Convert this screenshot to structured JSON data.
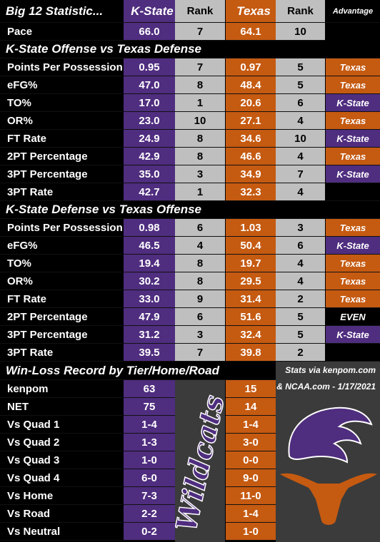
{
  "header": {
    "title": "Big 12 Statistic...",
    "team1": "K-State",
    "rank1": "Rank",
    "team2": "Texas",
    "rank2": "Rank",
    "advantage": "Advantage"
  },
  "pace": {
    "label": "Pace",
    "team1": "66.0",
    "rank1": "7",
    "team2": "64.1",
    "rank2": "10"
  },
  "sections": [
    {
      "title": "K-State Offense vs Texas Defense",
      "rows": [
        {
          "label": "Points Per Possession",
          "team1": "0.95",
          "rank1": "7",
          "team2": "0.97",
          "rank2": "5",
          "advantage": "Texas"
        },
        {
          "label": "eFG%",
          "team1": "47.0",
          "rank1": "8",
          "team2": "48.4",
          "rank2": "5",
          "advantage": "Texas"
        },
        {
          "label": "TO%",
          "team1": "17.0",
          "rank1": "1",
          "team2": "20.6",
          "rank2": "6",
          "advantage": "K-State"
        },
        {
          "label": "OR%",
          "team1": "23.0",
          "rank1": "10",
          "team2": "27.1",
          "rank2": "4",
          "advantage": "Texas"
        },
        {
          "label": "FT Rate",
          "team1": "24.9",
          "rank1": "8",
          "team2": "34.6",
          "rank2": "10",
          "advantage": "K-State"
        },
        {
          "label": "2PT Percentage",
          "team1": "42.9",
          "rank1": "8",
          "team2": "46.6",
          "rank2": "4",
          "advantage": "Texas"
        },
        {
          "label": "3PT Percentage",
          "team1": "35.0",
          "rank1": "3",
          "team2": "34.9",
          "rank2": "7",
          "advantage": "K-State"
        },
        {
          "label": "3PT Rate",
          "team1": "42.7",
          "rank1": "1",
          "team2": "32.3",
          "rank2": "4"
        }
      ]
    },
    {
      "title": "K-State Defense vs Texas Offense",
      "rows": [
        {
          "label": "Points Per Possession",
          "team1": "0.98",
          "rank1": "6",
          "team2": "1.03",
          "rank2": "3",
          "advantage": "Texas"
        },
        {
          "label": "eFG%",
          "team1": "46.5",
          "rank1": "4",
          "team2": "50.4",
          "rank2": "6",
          "advantage": "K-State"
        },
        {
          "label": "TO%",
          "team1": "19.4",
          "rank1": "8",
          "team2": "19.7",
          "rank2": "4",
          "advantage": "Texas"
        },
        {
          "label": "OR%",
          "team1": "30.2",
          "rank1": "8",
          "team2": "29.5",
          "rank2": "4",
          "advantage": "Texas"
        },
        {
          "label": "FT Rate",
          "team1": "33.0",
          "rank1": "9",
          "team2": "31.4",
          "rank2": "2",
          "advantage": "Texas"
        },
        {
          "label": "2PT Percentage",
          "team1": "47.9",
          "rank1": "6",
          "team2": "51.6",
          "rank2": "5",
          "advantage": "EVEN"
        },
        {
          "label": "3PT Percentage",
          "team1": "31.2",
          "rank1": "3",
          "team2": "32.4",
          "rank2": "5",
          "advantage": "K-State"
        },
        {
          "label": "3PT Rate",
          "team1": "39.5",
          "rank1": "7",
          "team2": "39.8",
          "rank2": "2"
        }
      ]
    }
  ],
  "record": {
    "title": "Win-Loss Record by Tier/Home/Road",
    "source": [
      "Stats via kenpom.com",
      "& NCAA.com - 1/17/2021"
    ],
    "logo_text": "Wildcats",
    "rows": [
      {
        "label": "kenpom",
        "team1": "63",
        "team2": "15"
      },
      {
        "label": "NET",
        "team1": "75",
        "team2": "14"
      },
      {
        "label": "Vs Quad 1",
        "team1": "1-4",
        "team2": "1-4"
      },
      {
        "label": "Vs Quad 2",
        "team1": "1-3",
        "team2": "3-0"
      },
      {
        "label": "Vs Quad 3",
        "team1": "1-0",
        "team2": "0-0"
      },
      {
        "label": "Vs Quad 4",
        "team1": "6-0",
        "team2": "9-0"
      },
      {
        "label": "Vs Home",
        "team1": "7-3",
        "team2": "11-0"
      },
      {
        "label": "Vs Road",
        "team1": "2-2",
        "team2": "1-4"
      },
      {
        "label": "Vs Neutral",
        "team1": "0-2",
        "team2": "1-0"
      }
    ]
  }
}
